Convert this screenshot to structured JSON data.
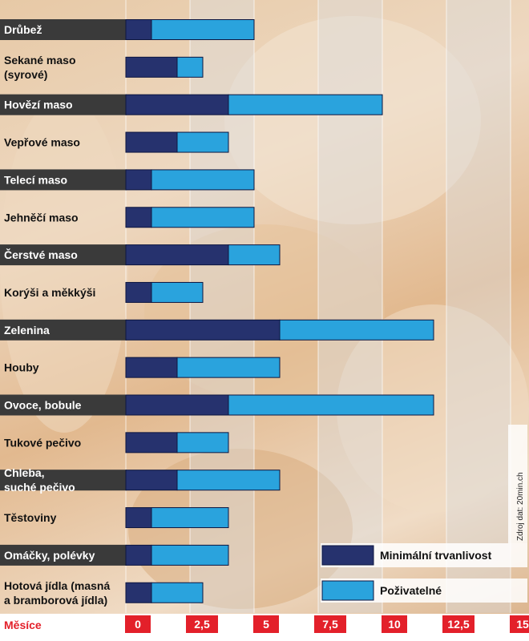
{
  "chart_data": {
    "type": "bar",
    "stacked": true,
    "orientation": "horizontal",
    "categories": [
      "Drůbež",
      "Sekané maso\n(syrové)",
      "Hovězí maso",
      "Vepřové maso",
      "Telecí maso",
      "Jehněčí maso",
      "Čerstvé maso",
      "Korýši a měkkýši",
      "Zelenina",
      "Houby",
      "Ovoce, bobule",
      "Tukové pečivo",
      "Chleba,\nsuché pečivo",
      "Těstoviny",
      "Omáčky, polévky",
      "Hotová jídla (masná\na bramborová jídla)"
    ],
    "series": [
      {
        "name": "Minimální trvanlivost",
        "values": [
          1,
          2,
          4,
          2,
          1,
          1,
          4,
          1,
          6,
          2,
          4,
          2,
          2,
          1,
          1,
          1
        ]
      },
      {
        "name": "Poživatelné",
        "values": [
          4,
          1,
          6,
          2,
          4,
          4,
          2,
          2,
          6,
          4,
          8,
          2,
          4,
          3,
          3,
          2
        ]
      }
    ],
    "xlabel": "Měsíce",
    "xticks": [
      "0",
      "2,5",
      "5",
      "7,5",
      "10",
      "12,5",
      "15"
    ],
    "xlim": [
      0,
      15
    ],
    "source": "Zdroj dat: 20min.ch",
    "colors": {
      "minimalni": "#26326e",
      "pozivatelne": "#2aa3dd",
      "label_dark_bg": "#3a3a3a",
      "tick_bg": "#e3202a",
      "axis_title": "#e3202a",
      "stripe": "#dcdcdc"
    }
  }
}
